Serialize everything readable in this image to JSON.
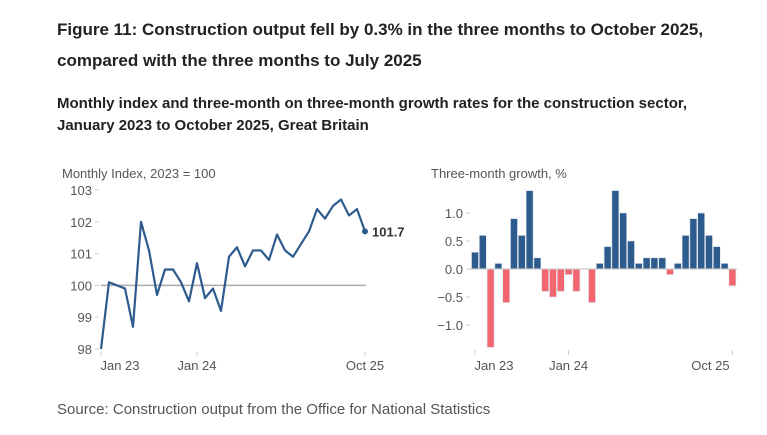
{
  "title": "Figure 11: Construction output fell by 0.3% in the three months to October 2025, compared with the three months to July 2025",
  "subtitle": "Monthly index and three-month on three-month growth rates for the construction sector, January 2023 to October 2025, Great Britain",
  "source": "Source: Construction output from the Office for National Statistics",
  "chart_data": [
    {
      "type": "line",
      "ylabel": "Monthly Index, 2023 = 100",
      "x_start": "Jan 2023",
      "x_end": "Oct 2025",
      "xticks": [
        "Jan 23",
        "Jan 24",
        "Oct 25"
      ],
      "yticks": [
        98,
        99,
        100,
        101,
        102,
        103
      ],
      "ylim": [
        98,
        103
      ],
      "reference_line": 100,
      "color": "#2e5b8d",
      "end_label": "101.7",
      "values": [
        98.0,
        100.1,
        100.0,
        99.9,
        98.7,
        102.0,
        101.1,
        99.7,
        100.5,
        100.5,
        100.1,
        99.5,
        100.7,
        99.6,
        99.9,
        99.2,
        100.9,
        101.2,
        100.6,
        101.1,
        101.1,
        100.8,
        101.6,
        101.1,
        100.9,
        101.3,
        101.7,
        102.4,
        102.1,
        102.5,
        102.7,
        102.2,
        102.4,
        101.7
      ]
    },
    {
      "type": "bar",
      "ylabel": "Three-month growth, %",
      "x_start": "Jan 2023",
      "x_end": "Oct 2025",
      "xticks": [
        "Jan 23",
        "Jan 24",
        "Oct 25"
      ],
      "yticks": [
        "1.0",
        "0.5",
        "0.0",
        "−0.5",
        "−1.0"
      ],
      "ylim": [
        -1.4,
        1.4
      ],
      "positive_color": "#2e5b8d",
      "negative_color": "#f2676f",
      "values": [
        0.3,
        0.6,
        -1.4,
        0.1,
        -0.6,
        0.9,
        0.6,
        1.4,
        0.2,
        -0.4,
        -0.5,
        -0.4,
        -0.1,
        -0.4,
        0.0,
        -0.6,
        0.1,
        0.4,
        1.4,
        1.0,
        0.5,
        0.1,
        0.2,
        0.2,
        0.2,
        -0.1,
        0.1,
        0.6,
        0.9,
        1.0,
        0.6,
        0.4,
        0.1,
        -0.3
      ]
    }
  ]
}
